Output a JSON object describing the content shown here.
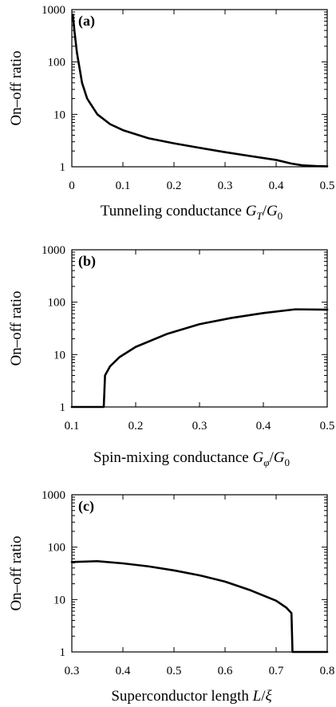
{
  "chart_data": [
    {
      "type": "line",
      "panel_label": "(a)",
      "xlabel": "Tunneling conductance",
      "xlabel_math": [
        "G",
        "T",
        "/",
        "G",
        "0"
      ],
      "ylabel": "On–off ratio",
      "yscale": "log",
      "xlim": [
        0,
        0.5
      ],
      "ylim": [
        1,
        1000
      ],
      "xticks": [
        "0",
        "0.1",
        "0.2",
        "0.3",
        "0.4",
        "0.5"
      ],
      "yticks": [
        "1",
        "10",
        "100",
        "1000"
      ],
      "x": [
        0.002,
        0.005,
        0.01,
        0.02,
        0.03,
        0.05,
        0.075,
        0.1,
        0.15,
        0.2,
        0.25,
        0.3,
        0.35,
        0.4,
        0.43,
        0.45,
        0.48,
        0.5
      ],
      "y": [
        800,
        400,
        150,
        40,
        20,
        10,
        6.5,
        5,
        3.5,
        2.8,
        2.3,
        1.9,
        1.6,
        1.35,
        1.15,
        1.07,
        1.03,
        1.02
      ]
    },
    {
      "type": "line",
      "panel_label": "(b)",
      "xlabel": "Spin-mixing conductance",
      "xlabel_math": [
        "G",
        "φ",
        "/",
        "G",
        "0"
      ],
      "ylabel": "On–off ratio",
      "yscale": "log",
      "xlim": [
        0.1,
        0.5
      ],
      "ylim": [
        1,
        1000
      ],
      "xticks": [
        "0.1",
        "0.2",
        "0.3",
        "0.4",
        "0.5"
      ],
      "yticks": [
        "1",
        "10",
        "100",
        "1000"
      ],
      "x": [
        0.1,
        0.148,
        0.15,
        0.152,
        0.16,
        0.175,
        0.2,
        0.25,
        0.3,
        0.35,
        0.4,
        0.45,
        0.5
      ],
      "y": [
        1,
        1,
        1,
        4,
        6,
        9,
        14,
        25,
        38,
        50,
        62,
        73,
        72
      ]
    },
    {
      "type": "line",
      "panel_label": "(c)",
      "xlabel": "Superconductor length",
      "xlabel_math": [
        "L",
        "",
        "/",
        "ξ",
        ""
      ],
      "ylabel": "On–off ratio",
      "yscale": "log",
      "xlim": [
        0.3,
        0.8
      ],
      "ylim": [
        1,
        1000
      ],
      "xticks": [
        "0.3",
        "0.4",
        "0.5",
        "0.6",
        "0.7",
        "0.8"
      ],
      "yticks": [
        "1",
        "10",
        "100",
        "1000"
      ],
      "x": [
        0.3,
        0.35,
        0.4,
        0.45,
        0.5,
        0.55,
        0.6,
        0.65,
        0.7,
        0.72,
        0.73,
        0.732,
        0.735,
        0.75,
        0.8
      ],
      "y": [
        52,
        54,
        49,
        43,
        36,
        29,
        22,
        15,
        9.5,
        7,
        5.5,
        1,
        1,
        1,
        1
      ]
    }
  ]
}
